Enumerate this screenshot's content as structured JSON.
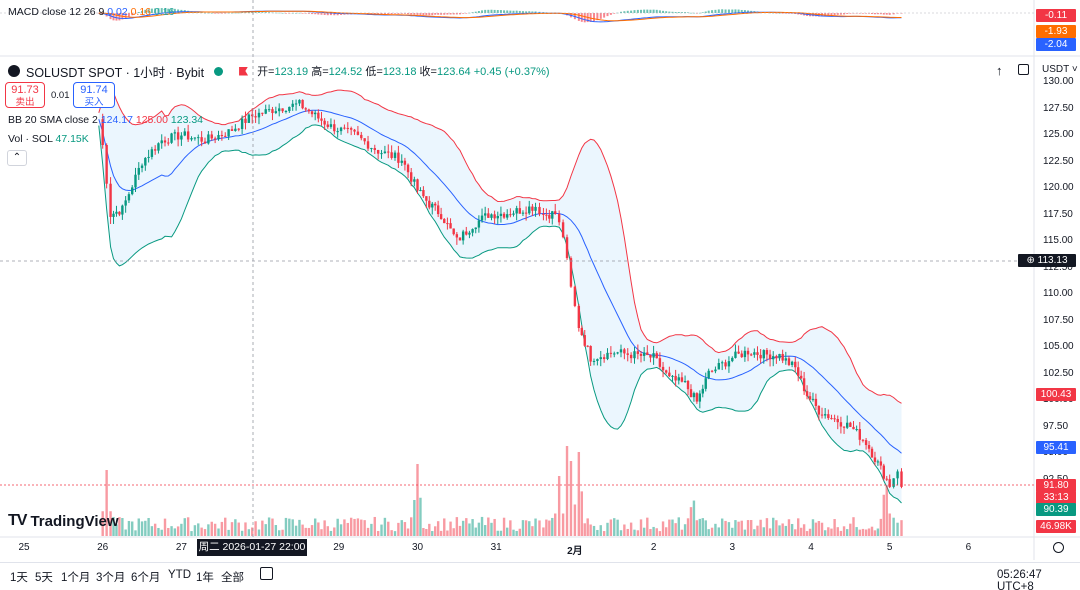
{
  "macd_header": {
    "label": "MACD close 12 26 9",
    "hist": "0.02",
    "macd": "0.16",
    "signal": "0.16"
  },
  "symbol": {
    "title": "SOLUSDT SPOT · 1小时 · Bybit",
    "ohlc": {
      "o_label": "开=",
      "o": "123.19",
      "h_label": "高=",
      "h": "124.52",
      "l_label": "低=",
      "l": "123.18",
      "c_label": "收=",
      "c": "123.64",
      "chg": "+0.45 (+0.37%)"
    }
  },
  "order": {
    "sell_price": "91.73",
    "sell_label": "卖出",
    "spread": "0.01",
    "buy_price": "91.74",
    "buy_label": "买入"
  },
  "bb_legend": {
    "label": "BB 20 SMA close 2",
    "basis": "124.17",
    "upper": "125.00",
    "lower": "123.34"
  },
  "vol_legend": {
    "label": "Vol · SOL",
    "value": "47.15K"
  },
  "currency": "USDT ˅",
  "macd_axis": {
    "v1": "-0.11",
    "v2": "-1.93",
    "v3": "-2.04"
  },
  "price_axis": {
    "ticks": [
      "130.00",
      "127.50",
      "125.00",
      "122.50",
      "120.00",
      "117.50",
      "115.00",
      "112.50",
      "110.00",
      "107.50",
      "105.00",
      "102.50",
      "100.00",
      "97.50",
      "95.00",
      "92.50"
    ],
    "crosshair_price": "113.13",
    "bb_upper_tag": "100.43",
    "bb_basis_tag": "95.41",
    "last_price_tag": "91.80",
    "countdown_tag": "33:13",
    "bb_lower_tag": "90.39",
    "volume_tag": "46.98K"
  },
  "time_axis": {
    "ticks": [
      "25",
      "26",
      "27",
      "29",
      "30",
      "31",
      "2月",
      "2",
      "3",
      "4",
      "5",
      "6"
    ],
    "crosshair_time": "周二 2026-01-27  22:00"
  },
  "bottom_bar": {
    "ranges": [
      "1天",
      "5天",
      "1个月",
      "3个月",
      "6个月",
      "YTD",
      "1年",
      "全部"
    ],
    "clock": "05:26:47 UTC+8"
  },
  "watermark": "TradingView",
  "colors": {
    "up": "#089981",
    "down": "#f23645",
    "basis": "#2962ff",
    "band_fill": "#e3f2fd",
    "macd_line": "#2962ff",
    "signal_line": "#ff6d00"
  },
  "chart_data": {
    "type": "candlestick",
    "symbol": "SOLUSDT",
    "interval": "1h",
    "price_range": [
      90.5,
      130.5
    ],
    "x_range_days": [
      "25",
      "6"
    ],
    "ohlc_path": [
      [
        25.95,
        126.5
      ],
      [
        26.0,
        124.0
      ],
      [
        26.1,
        117.5
      ],
      [
        26.25,
        118.0
      ],
      [
        26.5,
        122.5
      ],
      [
        26.75,
        124.5
      ],
      [
        27.0,
        125.0
      ],
      [
        27.3,
        124.5
      ],
      [
        27.6,
        125.3
      ],
      [
        27.9,
        126.8
      ],
      [
        28.2,
        127.5
      ],
      [
        28.5,
        127.9
      ],
      [
        28.7,
        126.8
      ],
      [
        28.9,
        125.8
      ],
      [
        29.2,
        125.0
      ],
      [
        29.5,
        123.5
      ],
      [
        29.8,
        122.7
      ],
      [
        30.0,
        119.8
      ],
      [
        30.15,
        118.5
      ],
      [
        30.3,
        117.5
      ],
      [
        30.5,
        115.0
      ],
      [
        30.7,
        116.5
      ],
      [
        30.9,
        117.5
      ],
      [
        31.1,
        117.6
      ],
      [
        31.3,
        117.9
      ],
      [
        31.5,
        118.3
      ],
      [
        31.6,
        117.5
      ],
      [
        31.75,
        117.6
      ],
      [
        31.85,
        115.5
      ],
      [
        31.95,
        110.5
      ],
      [
        32.05,
        107.0
      ],
      [
        32.2,
        104.0
      ],
      [
        32.5,
        104.5
      ],
      [
        32.8,
        104.2
      ],
      [
        33.0,
        104.0
      ],
      [
        33.2,
        102.0
      ],
      [
        33.4,
        101.5
      ],
      [
        33.55,
        99.8
      ],
      [
        33.7,
        102.5
      ],
      [
        34.0,
        104.0
      ],
      [
        34.2,
        104.6
      ],
      [
        34.4,
        104.3
      ],
      [
        34.6,
        104.2
      ],
      [
        34.8,
        103.0
      ],
      [
        34.95,
        100.5
      ],
      [
        35.1,
        99.0
      ],
      [
        35.3,
        98.2
      ],
      [
        35.5,
        97.5
      ],
      [
        35.7,
        96.0
      ],
      [
        35.85,
        94.0
      ],
      [
        36.0,
        92.0
      ],
      [
        36.1,
        93.5
      ],
      [
        36.15,
        91.8
      ]
    ],
    "volume_spikes": [
      [
        26.05,
        0.55
      ],
      [
        30.0,
        0.6
      ],
      [
        31.8,
        0.5
      ],
      [
        31.92,
        1.0
      ],
      [
        32.05,
        0.7
      ],
      [
        33.5,
        0.35
      ],
      [
        35.95,
        0.5
      ]
    ]
  }
}
